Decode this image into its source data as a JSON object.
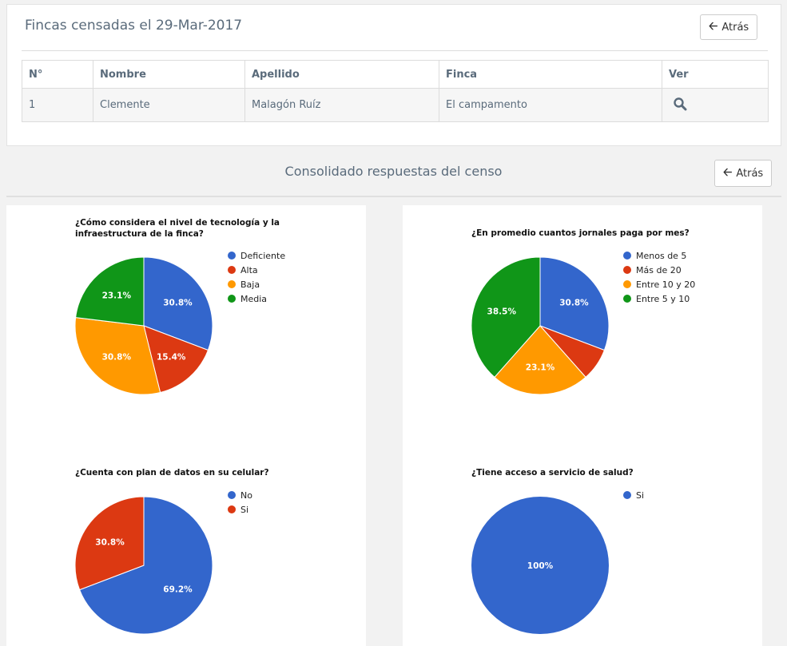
{
  "header": {
    "title": "Fincas censadas el 29-Mar-2017",
    "back_label": "Atrás"
  },
  "table": {
    "columns": [
      "N°",
      "Nombre",
      "Apellido",
      "Finca",
      "Ver"
    ],
    "rows": [
      {
        "n": "1",
        "nombre": "Clemente",
        "apellido": "Malagón Ruíz",
        "finca": "El campamento"
      }
    ]
  },
  "section": {
    "title": "Consolidado respuestas del censo",
    "back_label": "Atrás"
  },
  "colors": {
    "blue": "#3366cc",
    "red": "#dc3912",
    "orange": "#ff9900",
    "green": "#109618"
  },
  "chart_data": [
    {
      "type": "pie",
      "title": "¿Cómo considera el nivel de tecnología y la infraestructura de la finca?",
      "categories": [
        "Deficiente",
        "Alta",
        "Baja",
        "Media"
      ],
      "values": [
        30.8,
        15.4,
        30.8,
        23.1
      ],
      "labels": [
        "30.8%",
        "15.4%",
        "30.8%",
        "23.1%"
      ],
      "colors": [
        "#3366cc",
        "#dc3912",
        "#ff9900",
        "#109618"
      ],
      "legend": "right"
    },
    {
      "type": "pie",
      "title": "¿En promedio cuantos jornales paga por mes?",
      "categories": [
        "Menos de 5",
        "Más de 20",
        "Entre 10 y 20",
        "Entre 5 y 10"
      ],
      "values": [
        30.8,
        7.7,
        23.1,
        38.5
      ],
      "labels": [
        "30.8%",
        "",
        "23.1%",
        "38.5%"
      ],
      "colors": [
        "#3366cc",
        "#dc3912",
        "#ff9900",
        "#109618"
      ],
      "legend": "right"
    },
    {
      "type": "pie",
      "title": "¿Cuenta con plan de datos en su celular?",
      "categories": [
        "No",
        "Si"
      ],
      "values": [
        69.2,
        30.8
      ],
      "labels": [
        "69.2%",
        "30.8%"
      ],
      "colors": [
        "#3366cc",
        "#dc3912"
      ],
      "legend": "right"
    },
    {
      "type": "pie",
      "title": "¿Tiene acceso a servicio de salud?",
      "categories": [
        "Si"
      ],
      "values": [
        100
      ],
      "labels": [
        "100%"
      ],
      "colors": [
        "#3366cc"
      ],
      "legend": "right"
    }
  ]
}
